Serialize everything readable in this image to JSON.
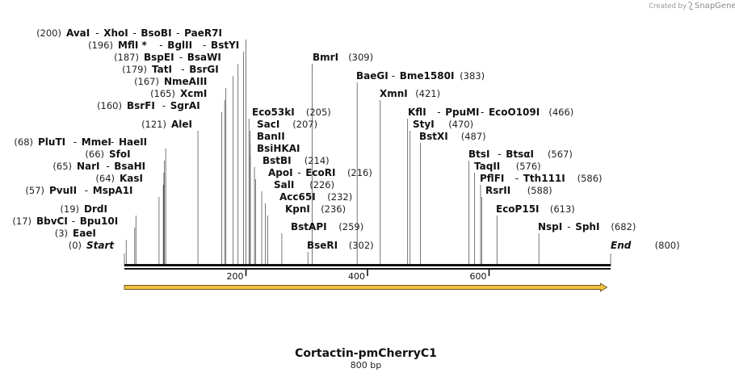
{
  "watermark": {
    "prefix": "Created by",
    "brand": "SnapGene"
  },
  "map": {
    "title": "Cortactin-pmCherryC1",
    "length_label": "800 bp",
    "length_bp": 800
  },
  "chart_data": {
    "type": "restriction-map",
    "sequence_length": 800,
    "axis_ticks": [
      200,
      400,
      600
    ],
    "feature_arrow": {
      "start": 0,
      "end": 794,
      "direction": "forward",
      "color": "#f0c040"
    },
    "label_rows": [
      {
        "pos": 0,
        "text": "(0)",
        "names": [
          "Start"
        ],
        "kind": "end",
        "pos_side": "left"
      },
      {
        "pos": 3,
        "text": "(3)",
        "names": [
          "EaeI"
        ],
        "pos_side": "left"
      },
      {
        "pos": 17,
        "text": "(17)",
        "names": [
          "BbvCI",
          "Bpu10I"
        ],
        "pos_side": "left"
      },
      {
        "pos": 19,
        "text": "(19)",
        "names": [
          "DrdI"
        ],
        "pos_side": "left"
      },
      {
        "pos": 57,
        "text": "(57)",
        "names": [
          "PvuII",
          "MspA1I"
        ],
        "pos_side": "left"
      },
      {
        "pos": 64,
        "text": "(64)",
        "names": [
          "KasI"
        ],
        "pos_side": "left"
      },
      {
        "pos": 65,
        "text": "(65)",
        "names": [
          "NarI",
          "BsaHI"
        ],
        "pos_side": "left"
      },
      {
        "pos": 66,
        "text": "(66)",
        "names": [
          "SfoI"
        ],
        "pos_side": "left"
      },
      {
        "pos": 68,
        "text": "(68)",
        "names": [
          "PluTI",
          "MmeI",
          "HaeII"
        ],
        "pos_side": "left"
      },
      {
        "pos": 121,
        "text": "(121)",
        "names": [
          "AleI"
        ],
        "pos_side": "left"
      },
      {
        "pos": 160,
        "text": "(160)",
        "names": [
          "BsrFI",
          "SgrAI"
        ],
        "pos_side": "left"
      },
      {
        "pos": 165,
        "text": "(165)",
        "names": [
          "XcmI"
        ],
        "pos_side": "left"
      },
      {
        "pos": 167,
        "text": "(167)",
        "names": [
          "NmeAIII"
        ],
        "pos_side": "left"
      },
      {
        "pos": 179,
        "text": "(179)",
        "names": [
          "TatI",
          "BsrGI"
        ],
        "pos_side": "left"
      },
      {
        "pos": 187,
        "text": "(187)",
        "names": [
          "BspEI",
          "BsaWI"
        ],
        "pos_side": "left"
      },
      {
        "pos": 196,
        "text": "(196)",
        "names": [
          "MflI *",
          "BglII",
          "BstYI"
        ],
        "pos_side": "left"
      },
      {
        "pos": 200,
        "text": "(200)",
        "names": [
          "AvaI",
          "XhoI",
          "BsoBI",
          "PaeR7I"
        ],
        "pos_side": "left"
      },
      {
        "pos": 205,
        "text": "(205)",
        "names": [
          "Eco53kI"
        ],
        "pos_side": "right"
      },
      {
        "pos": 207,
        "text": "(207)",
        "names": [
          "SacI"
        ],
        "pos_side": "right"
      },
      {
        "pos": 207,
        "text": "",
        "names": [
          "BanII"
        ],
        "pos_side": "right"
      },
      {
        "pos": 207,
        "text": "",
        "names": [
          "BsiHKAI"
        ],
        "pos_side": "right"
      },
      {
        "pos": 214,
        "text": "(214)",
        "names": [
          "BstBI"
        ],
        "pos_side": "right"
      },
      {
        "pos": 216,
        "text": "(216)",
        "names": [
          "ApoI",
          "EcoRI"
        ],
        "pos_side": "right"
      },
      {
        "pos": 226,
        "text": "(226)",
        "names": [
          "SalI"
        ],
        "pos_side": "right"
      },
      {
        "pos": 232,
        "text": "(232)",
        "names": [
          "Acc65I"
        ],
        "pos_side": "right"
      },
      {
        "pos": 236,
        "text": "(236)",
        "names": [
          "KpnI"
        ],
        "pos_side": "right"
      },
      {
        "pos": 259,
        "text": "(259)",
        "names": [
          "BstAPI"
        ],
        "pos_side": "right"
      },
      {
        "pos": 302,
        "text": "(302)",
        "names": [
          "BseRI"
        ],
        "pos_side": "right"
      },
      {
        "pos": 309,
        "text": "(309)",
        "names": [
          "BmrI"
        ],
        "pos_side": "right"
      },
      {
        "pos": 383,
        "text": "(383)",
        "names": [
          "BaeGI",
          "Bme1580I"
        ],
        "pos_side": "right"
      },
      {
        "pos": 421,
        "text": "(421)",
        "names": [
          "XmnI"
        ],
        "pos_side": "right"
      },
      {
        "pos": 466,
        "text": "(466)",
        "names": [
          "KflI",
          "PpuMI",
          "EcoO109I"
        ],
        "pos_side": "right"
      },
      {
        "pos": 470,
        "text": "(470)",
        "names": [
          "StyI"
        ],
        "pos_side": "right"
      },
      {
        "pos": 487,
        "text": "(487)",
        "names": [
          "BstXI"
        ],
        "pos_side": "right"
      },
      {
        "pos": 567,
        "text": "(567)",
        "names": [
          "BtsI",
          "BtsαI"
        ],
        "pos_side": "right"
      },
      {
        "pos": 576,
        "text": "(576)",
        "names": [
          "TaqII"
        ],
        "pos_side": "right"
      },
      {
        "pos": 586,
        "text": "(586)",
        "names": [
          "PflFI",
          "Tth111I"
        ],
        "pos_side": "right"
      },
      {
        "pos": 588,
        "text": "(588)",
        "names": [
          "RsrII"
        ],
        "pos_side": "right"
      },
      {
        "pos": 613,
        "text": "(613)",
        "names": [
          "EcoP15I"
        ],
        "pos_side": "right"
      },
      {
        "pos": 682,
        "text": "(682)",
        "names": [
          "NspI",
          "SphI"
        ],
        "pos_side": "right"
      },
      {
        "pos": 800,
        "text": "(800)",
        "names": [
          "End"
        ],
        "kind": "end",
        "pos_side": "right"
      }
    ]
  }
}
